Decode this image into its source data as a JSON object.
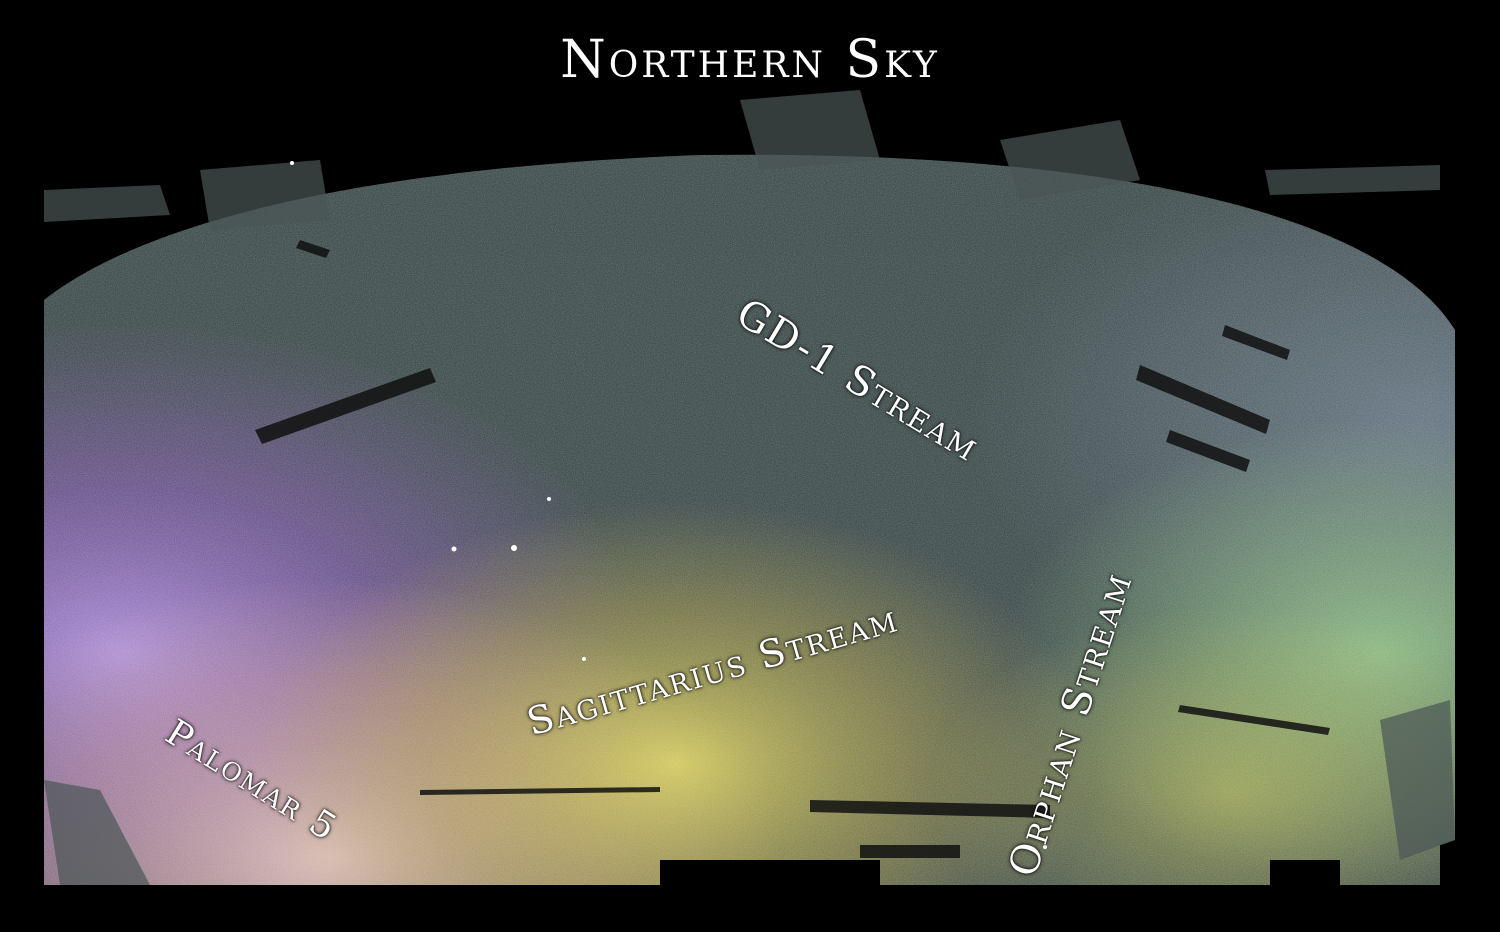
{
  "title": "Northern Sky",
  "labels": {
    "gd1": "GD-1 Stream",
    "sagittarius": "Sagittarius Stream",
    "orphan": "Orphan Stream",
    "palomar5": "Palomar 5"
  },
  "colors": {
    "background": "#000000",
    "sky_base": "#3b4a4a",
    "purple_region": "#9a6cc4",
    "yellow_region": "#d8cc5a",
    "pink_region": "#d8a0a8",
    "green_region": "#8cc48c",
    "text": "#ffffff"
  }
}
